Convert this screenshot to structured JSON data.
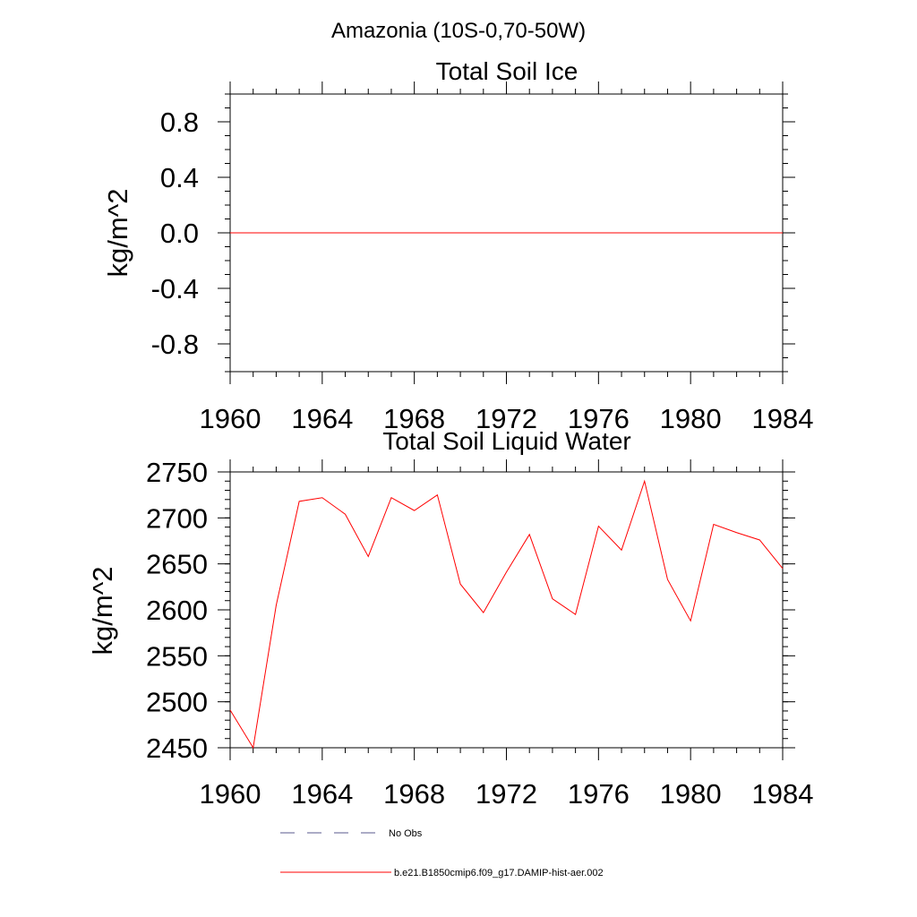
{
  "suptitle": "Amazonia (10S-0,70-50W)",
  "colors": {
    "model": "#ff0000",
    "obs": "#5a5a8c",
    "axis": "#000000"
  },
  "legend": [
    {
      "label": "No Obs",
      "style": "dashed",
      "color": "#5a5a8c"
    },
    {
      "label": "b.e21.B1850cmip6.f09_g17.DAMIP-hist-aer.002",
      "style": "solid",
      "color": "#ff0000"
    }
  ],
  "chart_data": [
    {
      "type": "line",
      "title": "Total Soil Ice",
      "xlabel": "",
      "ylabel": "kg/m^2",
      "xlim": [
        1960,
        1984
      ],
      "ylim": [
        -1.0,
        1.0
      ],
      "xticks": [
        1960,
        1964,
        1968,
        1972,
        1976,
        1980,
        1984
      ],
      "yticks": [
        -0.8,
        -0.4,
        0.0,
        0.4,
        0.8
      ],
      "ytick_labels": [
        "-0.8",
        "-0.4",
        "0.0",
        "0.4",
        "0.8"
      ],
      "grid": false,
      "series": [
        {
          "name": "b.e21.B1850cmip6.f09_g17.DAMIP-hist-aer.002",
          "x": [
            1960,
            1961,
            1962,
            1963,
            1964,
            1965,
            1966,
            1967,
            1968,
            1969,
            1970,
            1971,
            1972,
            1973,
            1974,
            1975,
            1976,
            1977,
            1978,
            1979,
            1980,
            1981,
            1982,
            1983,
            1984
          ],
          "values": [
            0,
            0,
            0,
            0,
            0,
            0,
            0,
            0,
            0,
            0,
            0,
            0,
            0,
            0,
            0,
            0,
            0,
            0,
            0,
            0,
            0,
            0,
            0,
            0,
            0
          ]
        }
      ]
    },
    {
      "type": "line",
      "title": "Total Soil Liquid Water",
      "xlabel": "",
      "ylabel": "kg/m^2",
      "xlim": [
        1960,
        1984
      ],
      "ylim": [
        2450,
        2750
      ],
      "xticks": [
        1960,
        1964,
        1968,
        1972,
        1976,
        1980,
        1984
      ],
      "yticks": [
        2450,
        2500,
        2550,
        2600,
        2650,
        2700,
        2750
      ],
      "ytick_labels": [
        "2450",
        "2500",
        "2550",
        "2600",
        "2650",
        "2700",
        "2750"
      ],
      "grid": false,
      "series": [
        {
          "name": "b.e21.B1850cmip6.f09_g17.DAMIP-hist-aer.002",
          "x": [
            1960,
            1961,
            1962,
            1963,
            1964,
            1965,
            1966,
            1967,
            1968,
            1969,
            1970,
            1971,
            1972,
            1973,
            1974,
            1975,
            1976,
            1977,
            1978,
            1979,
            1980,
            1981,
            1982,
            1983,
            1984
          ],
          "values": [
            2491,
            2450,
            2605,
            2718,
            2722,
            2704,
            2658,
            2722,
            2708,
            2725,
            2628,
            2597,
            2641,
            2682,
            2612,
            2595,
            2691,
            2665,
            2740,
            2633,
            2588,
            2693,
            2684,
            2676,
            2645
          ]
        }
      ]
    }
  ]
}
